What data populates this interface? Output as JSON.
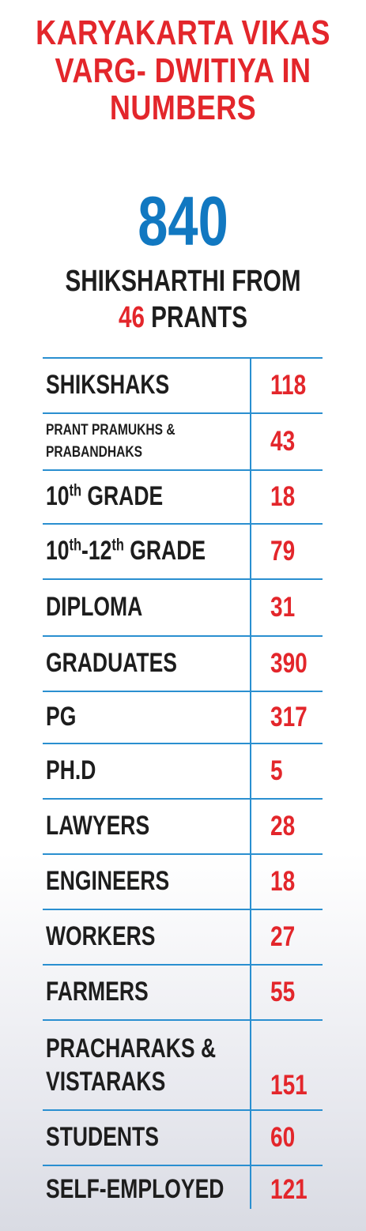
{
  "title": {
    "line1": "KARYAKARTA VIKAS",
    "line2": "VARG- DWITIYA IN",
    "line3": "NUMBERS"
  },
  "highlight": {
    "number": "840",
    "line1": "SHIKSHARTHI FROM",
    "prants_count": "46",
    "prants_label": "PRANTS"
  },
  "rows": [
    {
      "label": "SHIKSHAKS",
      "value": "118"
    },
    {
      "label_line1": "PRANT PRAMUKHS &",
      "label_line2": "PRABANDHAKS",
      "value": "43"
    },
    {
      "label_num": "10",
      "label_sup": "th",
      "label_rest": " GRADE",
      "value": "18"
    },
    {
      "label_num1": "10",
      "label_sup1": "th",
      "label_mid": "-12",
      "label_sup2": "th",
      "label_rest": " GRADE",
      "value": "79"
    },
    {
      "label": "DIPLOMA",
      "value": "31"
    },
    {
      "label": "GRADUATES",
      "value": "390"
    },
    {
      "label": "PG",
      "value": "317"
    },
    {
      "label": "PH.D",
      "value": "5"
    },
    {
      "label": "LAWYERS",
      "value": "28"
    },
    {
      "label": "ENGINEERS",
      "value": "18"
    },
    {
      "label": "WORKERS",
      "value": "27"
    },
    {
      "label": "FARMERS",
      "value": "55"
    },
    {
      "label_line1": "PRACHARAKS &",
      "label_line2": "VISTARAKS",
      "value": "151"
    },
    {
      "label": "STUDENTS",
      "value": "60"
    },
    {
      "label": "SELF-EMPLOYED",
      "value": "121"
    }
  ],
  "colors": {
    "title_red": "#e3262b",
    "number_blue": "#1178c1",
    "rule_blue": "#2a8fd0",
    "text_dark": "#1d1d1d"
  }
}
